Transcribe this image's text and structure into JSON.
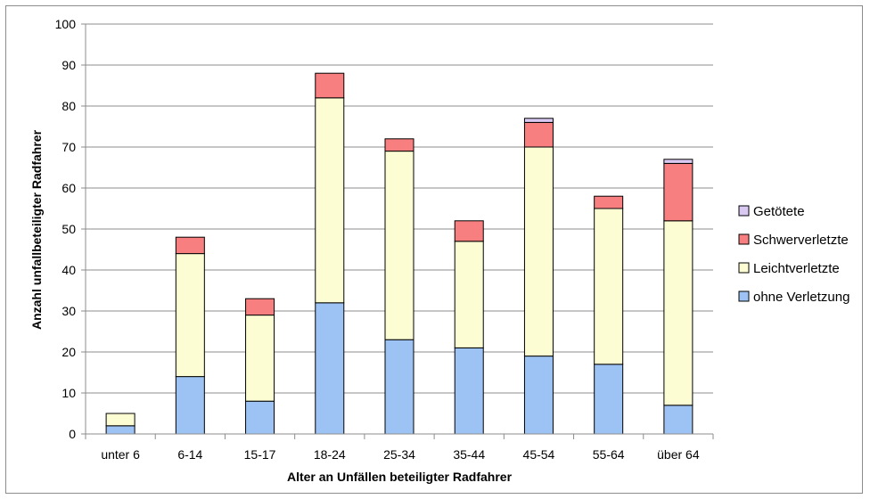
{
  "chart_data": {
    "type": "bar",
    "stacked": true,
    "title": "",
    "xlabel": "Alter an Unfällen beteiligter Radfahrer",
    "ylabel": "Anzahl unfallbeteiligter Radfahrer",
    "ylim": [
      0,
      100
    ],
    "yticks": [
      0,
      10,
      20,
      30,
      40,
      50,
      60,
      70,
      80,
      90,
      100
    ],
    "grid": true,
    "legend_position": "right",
    "categories": [
      "unter 6",
      "6-14",
      "15-17",
      "18-24",
      "25-34",
      "35-44",
      "45-54",
      "55-64",
      "über 64"
    ],
    "series": [
      {
        "name": "ohne Verletzung",
        "color": "#9dc3f5",
        "values": [
          2,
          14,
          8,
          32,
          23,
          21,
          19,
          17,
          7
        ]
      },
      {
        "name": "Leichtverletzte",
        "color": "#fdfdd3",
        "values": [
          3,
          30,
          21,
          50,
          46,
          26,
          51,
          38,
          45
        ]
      },
      {
        "name": "Schwerverletzte",
        "color": "#f77f7f",
        "values": [
          0,
          4,
          4,
          6,
          3,
          5,
          6,
          3,
          14
        ]
      },
      {
        "name": "Getötete",
        "color": "#d9c8f2",
        "values": [
          0,
          0,
          0,
          0,
          0,
          0,
          1,
          0,
          1
        ]
      }
    ]
  }
}
